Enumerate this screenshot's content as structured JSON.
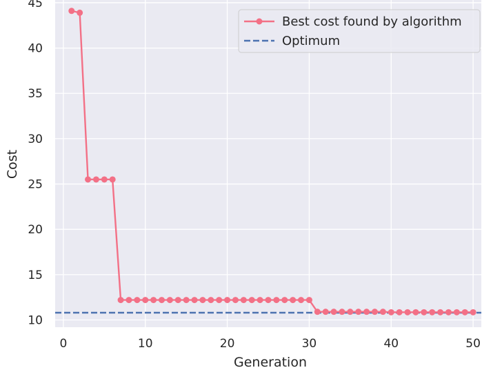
{
  "colors": {
    "plot_background": "#EAEAF2",
    "grid": "#FFFFFF",
    "series_line": "#F37086",
    "optimum_line": "#4C72B0",
    "text": "#262626",
    "legend_border": "#CCCCCC"
  },
  "chart_data": {
    "type": "line",
    "title": "",
    "xlabel": "Generation",
    "ylabel": "Cost",
    "xlim": [
      -1,
      51
    ],
    "ylim": [
      9.2,
      45.3
    ],
    "grid": true,
    "legend_position": "top-right",
    "x_ticks": [
      0,
      10,
      20,
      30,
      40,
      50
    ],
    "y_ticks": [
      10,
      15,
      20,
      25,
      30,
      35,
      40,
      45
    ],
    "series": [
      {
        "name": "Best cost found by algorithm",
        "style": "solid line with circle markers",
        "x": [
          1,
          2,
          3,
          4,
          5,
          6,
          7,
          8,
          9,
          10,
          11,
          12,
          13,
          14,
          15,
          16,
          17,
          18,
          19,
          20,
          21,
          22,
          23,
          24,
          25,
          26,
          27,
          28,
          29,
          30,
          31,
          32,
          33,
          34,
          35,
          36,
          37,
          38,
          39,
          40,
          41,
          42,
          43,
          44,
          45,
          46,
          47,
          48,
          49,
          50
        ],
        "y": [
          44.1,
          43.9,
          25.5,
          25.5,
          25.5,
          25.5,
          12.2,
          12.2,
          12.2,
          12.2,
          12.2,
          12.2,
          12.2,
          12.2,
          12.2,
          12.2,
          12.2,
          12.2,
          12.2,
          12.2,
          12.2,
          12.2,
          12.2,
          12.2,
          12.2,
          12.2,
          12.2,
          12.2,
          12.2,
          12.2,
          10.9,
          10.9,
          10.9,
          10.9,
          10.9,
          10.9,
          10.9,
          10.9,
          10.9,
          10.85,
          10.85,
          10.85,
          10.85,
          10.85,
          10.85,
          10.85,
          10.85,
          10.85,
          10.85,
          10.85
        ]
      },
      {
        "name": "Optimum",
        "style": "dashed horizontal line",
        "y": 10.8
      }
    ]
  }
}
